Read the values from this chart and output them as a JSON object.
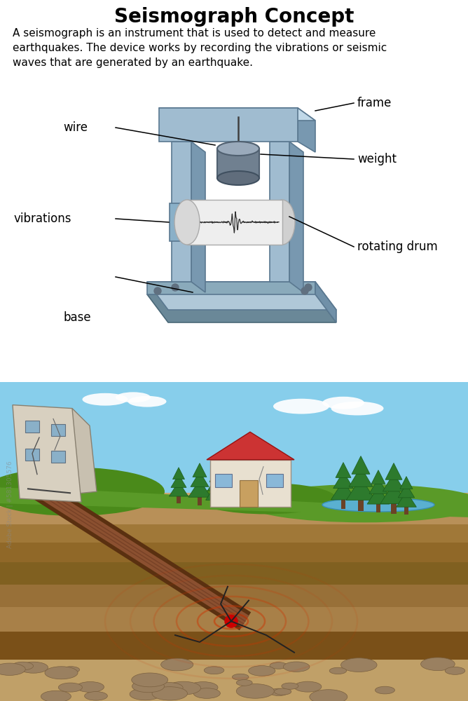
{
  "title": "Seismograph Concept",
  "subtitle": "A seismograph is an instrument that is used to detect and measure\nearthquakes. The device works by recording the vibrations or seismic\nwaves that are generated by an earthquake.",
  "labels": {
    "frame": "frame",
    "weight": "weight",
    "rotating_drum": "rotating drum",
    "vibrations": "vibrations",
    "wire": "wire",
    "base": "base"
  },
  "background_color": "#ffffff",
  "title_fontsize": 20,
  "subtitle_fontsize": 11,
  "label_fontsize": 12,
  "seismo_colors": {
    "base_top": "#b0c8d8",
    "base_front": "#8aaabb",
    "base_side": "#7090a8",
    "post_front": "#a0bcd0",
    "post_side": "#7898b0",
    "top_frame_top": "#c0d8e8",
    "top_frame_front": "#a0bcd0",
    "top_frame_side": "#7898b0",
    "drum_paper": "#eeeeee",
    "drum_end": "#cccccc",
    "drum_support": "#8ab0c8",
    "weight_top": "#9aaabb",
    "weight_side": "#708090",
    "wire_color": "#404040",
    "bolt_color": "#607080"
  },
  "scene": {
    "sky_color": "#7ec8e8",
    "sky_top": "#60b0e0",
    "cloud_color": "#ffffff",
    "grass_color": "#5a9a28",
    "grass_dark": "#4a8a18",
    "hill_color": "#4a8a1a",
    "water_color": "#5ab0d0",
    "tree_trunk": "#6B4226",
    "tree_green": "#2d7a2d",
    "tree_dark": "#1a5a1a",
    "layer1_color": "#c8a870",
    "layer2_color": "#b89058",
    "layer3_color": "#a07838",
    "layer4_color": "#906828",
    "layer5_color": "#806020",
    "layer6_color": "#987038",
    "layer7_color": "#a88048",
    "layer8_color": "#7a5018",
    "layer9_color": "#c0a068",
    "rock_fill": "#9a8060",
    "rock_edge": "#7a6040",
    "fault_dark": "#5a3010",
    "fault_light": "#8B5030",
    "epi_color": "#cc0000",
    "wave_color": "#cc3300",
    "crack_color": "#222222",
    "building_wall": "#d8d0c0",
    "building_wall2": "#c8c0b0",
    "building_edge": "#888070",
    "window_blue": "#8ab0c8",
    "house_wall": "#e8e0d0",
    "house_roof": "#cc3333",
    "house_door": "#c8a060",
    "watermark_color": "#888888"
  }
}
